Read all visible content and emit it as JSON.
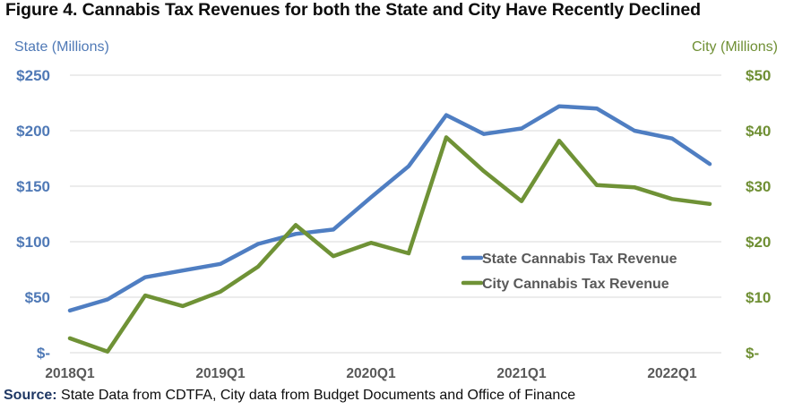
{
  "title": "Figure 4. Cannabis Tax Revenues for both the State and City Have Recently Declined",
  "source": {
    "label": "Source:",
    "text": " State Data from CDTFA, City data from Budget Documents and Office of Finance"
  },
  "colors": {
    "state": "#4f7ec2",
    "city": "#6f9236",
    "grid": "#d9d9d9",
    "left_axis_text": "#4f79b6",
    "right_axis_text": "#6f8f34"
  },
  "chart_data": {
    "type": "line",
    "title": "Figure 4. Cannabis Tax Revenues for both the State and City Have Recently Declined",
    "xlabel": "",
    "ylabel_left": "State (Millions)",
    "ylabel_right": "City (Millions)",
    "x": [
      "2018Q1",
      "2018Q2",
      "2018Q3",
      "2018Q4",
      "2019Q1",
      "2019Q2",
      "2019Q3",
      "2019Q4",
      "2020Q1",
      "2020Q2",
      "2020Q3",
      "2020Q4",
      "2021Q1",
      "2021Q2",
      "2021Q3",
      "2021Q4",
      "2022Q1",
      "2022Q2"
    ],
    "x_tick_labels": [
      "2018Q1",
      "2019Q1",
      "2020Q1",
      "2021Q1",
      "2022Q1"
    ],
    "x_tick_indices": [
      0,
      4,
      8,
      12,
      16
    ],
    "ylim_left": [
      0,
      250
    ],
    "ylim_right": [
      0,
      50
    ],
    "y_ticks_left": [
      "$-",
      "$50",
      "$100",
      "$150",
      "$200",
      "$250"
    ],
    "y_ticks_right": [
      "$-",
      "$10",
      "$20",
      "$30",
      "$40",
      "$50"
    ],
    "grid": true,
    "legend_position": "center-right",
    "series": [
      {
        "name": "State Cannabis Tax Revenue",
        "axis": "left",
        "values": [
          38,
          48,
          68,
          74,
          80,
          98,
          107,
          111,
          140,
          168,
          214,
          197,
          202,
          222,
          220,
          200,
          193,
          170
        ]
      },
      {
        "name": "City Cannabis Tax Revenue",
        "axis": "right",
        "values": [
          2.6,
          0.2,
          10.3,
          8.4,
          11,
          15.5,
          23,
          17.4,
          19.8,
          17.9,
          38.8,
          32.7,
          27.3,
          38.2,
          30.2,
          29.8,
          27.7,
          26.8
        ]
      }
    ]
  }
}
